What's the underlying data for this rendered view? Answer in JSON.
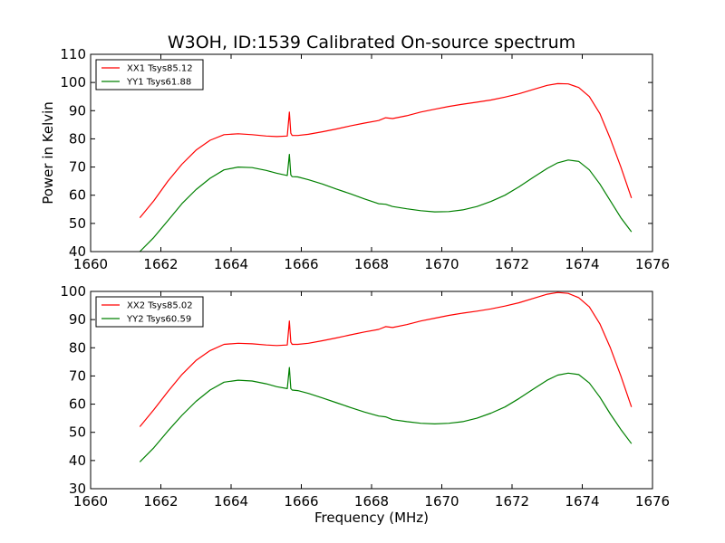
{
  "figure": {
    "title": "W3OH, ID:1539 Calibrated On-source spectrum",
    "xlabel": "Frequency (MHz)",
    "ylabel": "Power in Kelvin"
  },
  "chart_data": [
    {
      "type": "line",
      "xlim": [
        1660,
        1676
      ],
      "ylim": [
        40,
        110
      ],
      "xticks": [
        1660,
        1662,
        1664,
        1666,
        1668,
        1670,
        1672,
        1674,
        1676
      ],
      "yticks": [
        40,
        50,
        60,
        70,
        80,
        90,
        100,
        110
      ],
      "legend_position": "top-left",
      "grid": false,
      "series": [
        {
          "name": "XX1 Tsys85.12",
          "color": "#ff0000",
          "x": [
            1661.4,
            1661.8,
            1662.2,
            1662.6,
            1663.0,
            1663.4,
            1663.8,
            1664.2,
            1664.6,
            1665.0,
            1665.3,
            1665.6,
            1665.66,
            1665.7,
            1665.74,
            1665.9,
            1666.2,
            1666.6,
            1667.0,
            1667.4,
            1667.8,
            1668.2,
            1668.4,
            1668.6,
            1669.0,
            1669.4,
            1669.8,
            1670.2,
            1670.6,
            1671.0,
            1671.4,
            1671.8,
            1672.2,
            1672.6,
            1673.0,
            1673.3,
            1673.6,
            1673.9,
            1674.2,
            1674.5,
            1674.8,
            1675.1,
            1675.4
          ],
          "values": [
            52,
            58,
            65,
            71,
            76,
            79.5,
            81.5,
            81.8,
            81.5,
            81,
            80.8,
            81,
            89.5,
            82,
            81.2,
            81.2,
            81.6,
            82.5,
            83.5,
            84.6,
            85.6,
            86.5,
            87.5,
            87.2,
            88.2,
            89.5,
            90.5,
            91.5,
            92.3,
            93,
            93.8,
            94.8,
            96,
            97.5,
            99,
            99.6,
            99.5,
            98.2,
            95,
            89,
            80,
            70,
            59
          ]
        },
        {
          "name": "YY1 Tsys61.88",
          "color": "#008000",
          "x": [
            1661.4,
            1661.8,
            1662.2,
            1662.6,
            1663.0,
            1663.4,
            1663.8,
            1664.2,
            1664.6,
            1665.0,
            1665.3,
            1665.6,
            1665.66,
            1665.7,
            1665.74,
            1665.9,
            1666.2,
            1666.6,
            1667.0,
            1667.4,
            1667.8,
            1668.2,
            1668.4,
            1668.6,
            1669.0,
            1669.4,
            1669.8,
            1670.2,
            1670.6,
            1671.0,
            1671.4,
            1671.8,
            1672.2,
            1672.6,
            1673.0,
            1673.3,
            1673.6,
            1673.9,
            1674.2,
            1674.5,
            1674.8,
            1675.1,
            1675.4
          ],
          "values": [
            40,
            45,
            51,
            57,
            62,
            66,
            69,
            70,
            69.8,
            68.8,
            67.8,
            67,
            74.5,
            67.2,
            66.6,
            66.5,
            65.5,
            64,
            62.2,
            60.5,
            58.7,
            57,
            56.8,
            56,
            55.2,
            54.5,
            54.1,
            54.2,
            54.8,
            56,
            57.8,
            60,
            63,
            66.3,
            69.5,
            71.5,
            72.5,
            72,
            69,
            64,
            58,
            52,
            47
          ]
        }
      ]
    },
    {
      "type": "line",
      "xlim": [
        1660,
        1676
      ],
      "ylim": [
        30,
        100
      ],
      "xticks": [
        1660,
        1662,
        1664,
        1666,
        1668,
        1670,
        1672,
        1674,
        1676
      ],
      "yticks": [
        30,
        40,
        50,
        60,
        70,
        80,
        90,
        100
      ],
      "legend_position": "top-left",
      "grid": false,
      "series": [
        {
          "name": "XX2 Tsys85.02",
          "color": "#ff0000",
          "x": [
            1661.4,
            1661.8,
            1662.2,
            1662.6,
            1663.0,
            1663.4,
            1663.8,
            1664.2,
            1664.6,
            1665.0,
            1665.3,
            1665.6,
            1665.66,
            1665.7,
            1665.74,
            1665.9,
            1666.2,
            1666.6,
            1667.0,
            1667.4,
            1667.8,
            1668.2,
            1668.4,
            1668.6,
            1669.0,
            1669.4,
            1669.8,
            1670.2,
            1670.6,
            1671.0,
            1671.4,
            1671.8,
            1672.2,
            1672.6,
            1673.0,
            1673.3,
            1673.6,
            1673.9,
            1674.2,
            1674.5,
            1674.8,
            1675.1,
            1675.4
          ],
          "values": [
            52,
            58,
            64.5,
            70.5,
            75.5,
            79,
            81.2,
            81.6,
            81.4,
            81,
            80.8,
            81,
            89.5,
            82,
            81.2,
            81.2,
            81.6,
            82.5,
            83.5,
            84.6,
            85.6,
            86.5,
            87.5,
            87.2,
            88.2,
            89.5,
            90.5,
            91.5,
            92.3,
            93,
            93.8,
            94.8,
            96,
            97.5,
            99,
            99.6,
            99.3,
            97.8,
            94.5,
            88.5,
            80,
            70,
            59
          ]
        },
        {
          "name": "YY2 Tsys60.59",
          "color": "#008000",
          "x": [
            1661.4,
            1661.8,
            1662.2,
            1662.6,
            1663.0,
            1663.4,
            1663.8,
            1664.2,
            1664.6,
            1665.0,
            1665.3,
            1665.6,
            1665.66,
            1665.7,
            1665.74,
            1665.9,
            1666.2,
            1666.6,
            1667.0,
            1667.4,
            1667.8,
            1668.2,
            1668.4,
            1668.6,
            1669.0,
            1669.4,
            1669.8,
            1670.2,
            1670.6,
            1671.0,
            1671.4,
            1671.8,
            1672.2,
            1672.6,
            1673.0,
            1673.3,
            1673.6,
            1673.9,
            1674.2,
            1674.5,
            1674.8,
            1675.1,
            1675.4
          ],
          "values": [
            39.5,
            44.5,
            50.5,
            56,
            61,
            65,
            67.8,
            68.5,
            68.2,
            67.2,
            66.2,
            65.5,
            73,
            65.5,
            65,
            64.8,
            63.8,
            62.2,
            60.5,
            58.8,
            57.2,
            55.8,
            55.5,
            54.5,
            53.8,
            53.2,
            53,
            53.2,
            53.8,
            55,
            56.8,
            59,
            62,
            65.3,
            68.5,
            70.3,
            71,
            70.5,
            67.5,
            62.5,
            56.5,
            51,
            46
          ]
        }
      ]
    }
  ]
}
